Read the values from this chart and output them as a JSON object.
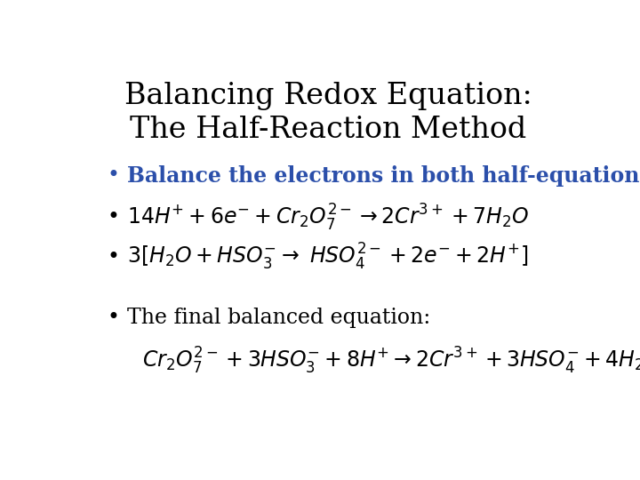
{
  "title_line1": "Balancing Redox Equation:",
  "title_line2": "The Half-Reaction Method",
  "title_color": "#000000",
  "title_fontsize": 24,
  "bg_color": "#ffffff",
  "bullet_color": "#000000",
  "bullet1_color": "#2b4faa",
  "bullet1_text": "Balance the electrons in both half-equations:",
  "body_fontsize": 17,
  "body_color": "#000000"
}
